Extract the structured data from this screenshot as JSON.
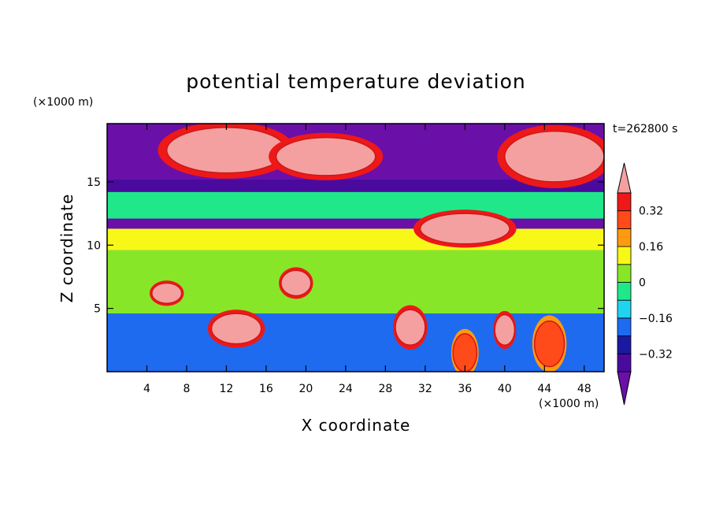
{
  "chart_data": {
    "type": "heatmap",
    "title": "potential temperature deviation",
    "xlabel": "X coordinate",
    "ylabel": "Z coordinate",
    "x_unit": "(×1000 m)",
    "y_unit": "(×1000 m)",
    "time_label": "t=262800 s",
    "xlim": [
      0,
      50
    ],
    "ylim": [
      0,
      19.6
    ],
    "x_ticks": [
      4,
      8,
      12,
      16,
      20,
      24,
      28,
      32,
      36,
      40,
      44,
      48
    ],
    "y_ticks": [
      5,
      10,
      15
    ],
    "colorbar": {
      "ticks": [
        -0.32,
        -0.16,
        0,
        0.16,
        0.32
      ],
      "tick_labels": [
        "−0.32",
        "−0.16",
        "0",
        "0.16",
        "0.32"
      ],
      "levels": [
        -0.4,
        -0.32,
        -0.24,
        -0.16,
        -0.08,
        0,
        0.08,
        0.16,
        0.24,
        0.32,
        0.4
      ],
      "colors": [
        "#6a0fa8",
        "#4b0a9e",
        "#1a1aa0",
        "#1e6bf0",
        "#22d3f0",
        "#20e88a",
        "#88e628",
        "#f8f818",
        "#ff9a10",
        "#ff4a1a",
        "#ee1818",
        "#f5a0a0"
      ]
    },
    "regions": [
      {
        "kind": "band",
        "z": [
          0.4,
          4.6
        ],
        "value": -0.2
      },
      {
        "kind": "band",
        "z": [
          4.6,
          9.6
        ],
        "value": 0.04
      },
      {
        "kind": "band",
        "z": [
          9.6,
          11.3
        ],
        "value": 0.1
      },
      {
        "kind": "band",
        "z": [
          11.3,
          12.1
        ],
        "value": -0.45
      },
      {
        "kind": "band",
        "z": [
          12.1,
          14.2
        ],
        "value": -0.08
      },
      {
        "kind": "band",
        "z": [
          14.2,
          15.2
        ],
        "value": -0.35
      },
      {
        "kind": "band",
        "z": [
          15.2,
          19.6
        ],
        "value": -0.45
      },
      {
        "kind": "blob",
        "x": 12,
        "z": 17.5,
        "rx": 6,
        "ry": 1.8,
        "value": 0.45
      },
      {
        "kind": "blob",
        "x": 22,
        "z": 17,
        "rx": 5,
        "ry": 1.5,
        "value": 0.45
      },
      {
        "kind": "blob",
        "x": 36,
        "z": 11.3,
        "rx": 4.5,
        "ry": 1.2,
        "value": 0.45
      },
      {
        "kind": "blob",
        "x": 45,
        "z": 17,
        "rx": 5,
        "ry": 2,
        "value": 0.45
      },
      {
        "kind": "blob",
        "x": 13,
        "z": 3.4,
        "rx": 2.5,
        "ry": 1.2,
        "value": 0.45
      },
      {
        "kind": "blob",
        "x": 30.5,
        "z": 3.5,
        "rx": 1.5,
        "ry": 1.4,
        "value": 0.45
      },
      {
        "kind": "blob",
        "x": 36,
        "z": 1.5,
        "rx": 1.2,
        "ry": 1.5,
        "value": 0.3
      },
      {
        "kind": "blob",
        "x": 44.5,
        "z": 2.2,
        "rx": 1.5,
        "ry": 1.8,
        "value": 0.3
      },
      {
        "kind": "blob",
        "x": 6,
        "z": 6.2,
        "rx": 1.5,
        "ry": 0.8,
        "value": 0.45
      },
      {
        "kind": "blob",
        "x": 19,
        "z": 7,
        "rx": 1.5,
        "ry": 1.0,
        "value": 0.45
      },
      {
        "kind": "blob",
        "x": 40,
        "z": 3.3,
        "rx": 1.0,
        "ry": 1.2,
        "value": 0.45
      }
    ]
  }
}
